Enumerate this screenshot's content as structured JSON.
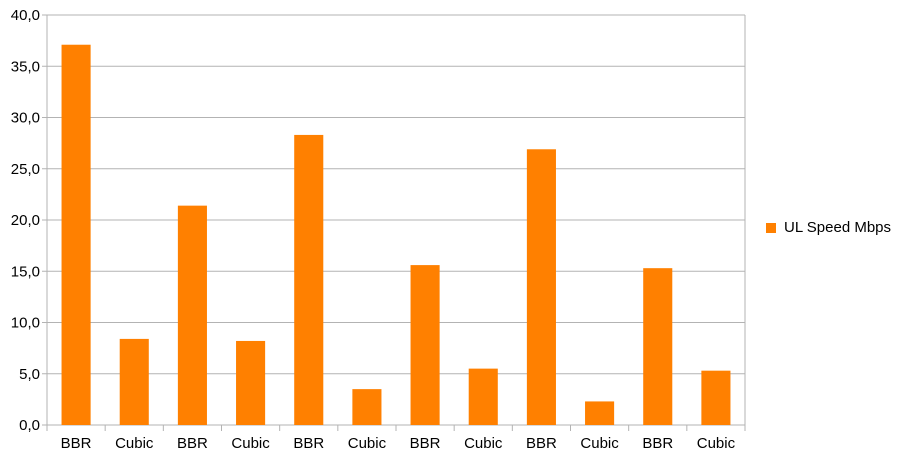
{
  "chart_data": {
    "type": "bar",
    "categories": [
      "BBR",
      "Cubic",
      "BBR",
      "Cubic",
      "BBR",
      "Cubic",
      "BBR",
      "Cubic",
      "BBR",
      "Cubic",
      "BBR",
      "Cubic"
    ],
    "series": [
      {
        "name": "UL Speed Mbps",
        "color": "#ff8000",
        "values": [
          37.1,
          8.4,
          21.4,
          8.2,
          28.3,
          3.5,
          15.6,
          5.5,
          26.9,
          2.3,
          15.3,
          5.3
        ]
      }
    ],
    "ylim": [
      0,
      40
    ],
    "yticks": [
      "0,0",
      "5,0",
      "10,0",
      "15,0",
      "20,0",
      "25,0",
      "30,0",
      "35,0",
      "40,0"
    ],
    "grid": true,
    "legend_position": "right",
    "title": "",
    "xlabel": "",
    "ylabel": ""
  }
}
